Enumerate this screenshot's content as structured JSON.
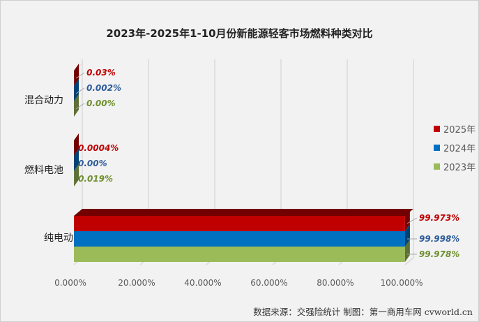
{
  "chart_data": {
    "type": "bar",
    "orientation": "horizontal",
    "title": "2023年-2025年1-10月份新能源轻客市场燃料种类对比",
    "categories": [
      "混合动力",
      "燃料电池",
      "纯电动"
    ],
    "series": [
      {
        "name": "2025年",
        "color": "#c00000",
        "values": [
          0.03,
          0.0004,
          99.973
        ],
        "labels": [
          "0.03%",
          "0.0004%",
          "99.973%"
        ]
      },
      {
        "name": "2024年",
        "color": "#0070c0",
        "values": [
          0.002,
          0.0,
          99.998
        ],
        "labels": [
          "0.002%",
          "0.00%",
          "99.998%"
        ]
      },
      {
        "name": "2023年",
        "color": "#9bbb59",
        "values": [
          0.0,
          0.019,
          99.978
        ],
        "labels": [
          "0.00%",
          "0.019%",
          "99.978%"
        ]
      }
    ],
    "label_colors": [
      "#c00000",
      "#2e5c9a",
      "#6f8f2f"
    ],
    "xlim": [
      0,
      100
    ],
    "xticks": [
      "0.000%",
      "20.000%",
      "40.000%",
      "60.000%",
      "80.000%",
      "100.000%"
    ],
    "grid": true,
    "legend_position": "right",
    "style": "3d"
  },
  "source": "数据来源：交强险统计  制图：第一商用车网 cvworld.cn"
}
